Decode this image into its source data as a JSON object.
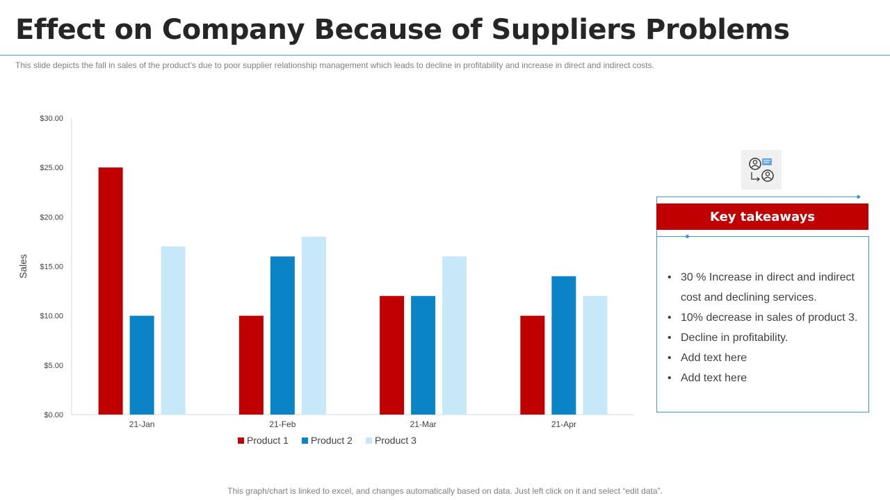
{
  "title": "Effect on Company Because of Suppliers Problems",
  "subtitle": "This slide depicts the fall in sales of the product’s due to poor supplier relationship management which leads to decline in profitability  and increase in direct and indirect costs.",
  "footer": "This graph/chart is linked to excel, and changes automatically based on data. Just left click on it and select “edit data”.",
  "takeaways": {
    "header": "Key takeaways",
    "items": [
      "30 % Increase in direct and indirect cost and declining services.",
      "10% decrease in sales of product 3.",
      "Decline in profitability.",
      "Add text here",
      "Add text here"
    ],
    "icon": "supplier-relationship-icon"
  },
  "colors": {
    "accent_red": "#c00000",
    "accent_blue": "#3d9bc7",
    "product1": "#c00000",
    "product2": "#0a84c6",
    "product3": "#c7e8f9"
  },
  "chart_data": {
    "type": "bar",
    "title": "",
    "xlabel": "",
    "ylabel": "Sales",
    "categories": [
      "21-Jan",
      "21-Feb",
      "21-Mar",
      "21-Apr"
    ],
    "series": [
      {
        "name": "Product 1",
        "color": "#c00000",
        "values": [
          25,
          10,
          12,
          10
        ]
      },
      {
        "name": "Product 2",
        "color": "#0a84c6",
        "values": [
          10,
          16,
          12,
          14
        ]
      },
      {
        "name": "Product 3",
        "color": "#c7e8f9",
        "values": [
          17,
          18,
          16,
          12
        ]
      }
    ],
    "ylim": [
      0,
      30
    ],
    "yticks": [
      0,
      5,
      10,
      15,
      20,
      25,
      30
    ],
    "ytick_labels": [
      "$0.00",
      "$5.00",
      "$10.00",
      "$15.00",
      "$20.00",
      "$25.00",
      "$30.00"
    ],
    "grid": false,
    "legend": "bottom-center"
  }
}
